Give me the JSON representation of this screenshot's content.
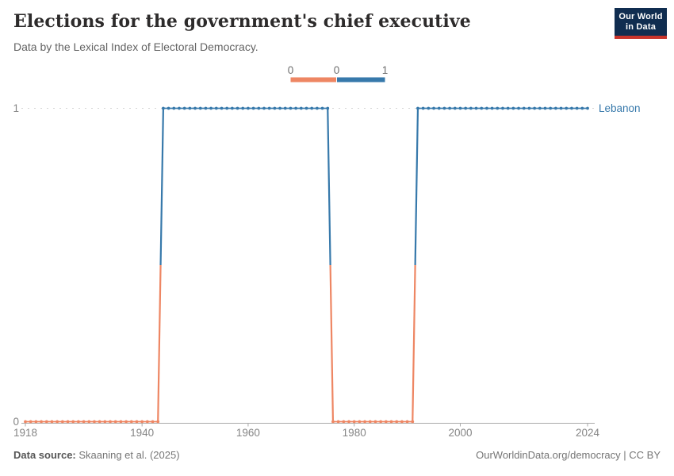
{
  "header": {
    "title": "Elections for the government's chief executive",
    "subtitle": "Data by the Lexical Index of Electoral Democracy.",
    "logo": {
      "line1": "Our World",
      "line2": "in Data"
    }
  },
  "legend": {
    "position": "top-center",
    "tick_labels": [
      "0",
      "0",
      "1"
    ],
    "bins": [
      {
        "value": 0,
        "color": "#ee8663"
      },
      {
        "value": 1,
        "color": "#3779ab"
      }
    ]
  },
  "chart_data": {
    "type": "line",
    "title": "Elections for the government's chief executive",
    "subtitle": "Data by the Lexical Index of Electoral Democracy.",
    "entity": "Lebanon",
    "xlim": [
      1918,
      2024
    ],
    "ylim": [
      0,
      1
    ],
    "x_ticks": [
      1918,
      1940,
      1960,
      1980,
      2000,
      2024
    ],
    "y_ticks": [
      0,
      1
    ],
    "grid": "dashed horizontal gridline at y=1; solid x-axis at y=0",
    "legend_position": "top-center",
    "value_colors": {
      "0": "#ee8663",
      "1": "#3779ab"
    },
    "series": [
      {
        "name": "Lebanon",
        "label_color": "#3779ab",
        "steps": [
          {
            "start_year": 1918,
            "end_year": 1943,
            "value": 0
          },
          {
            "start_year": 1944,
            "end_year": 1975,
            "value": 1
          },
          {
            "start_year": 1976,
            "end_year": 1991,
            "value": 0
          },
          {
            "start_year": 1992,
            "end_year": 2024,
            "value": 1
          }
        ]
      }
    ],
    "notes": "One data point per year 1918-2024; point and segment color encodes value (0=orange, 1=blue); vertical transitions are half orange (bottom) and half blue (top)."
  },
  "footer": {
    "source_label": "Data source:",
    "source_value": " Skaaning et al. (2025)",
    "rights": "OurWorldinData.org/democracy | CC BY"
  }
}
